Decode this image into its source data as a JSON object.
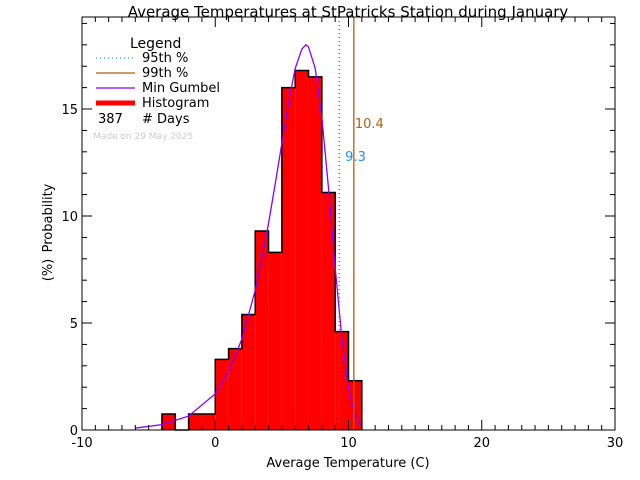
{
  "chart_data": {
    "type": "bar",
    "title": "Average Temperatures at StPatricks Station during January",
    "xlabel": "Average Temperature (C)",
    "ylabel": "Probability\n(%)",
    "xlim": [
      -10,
      30
    ],
    "ylim": [
      0,
      19.3
    ],
    "x_ticks": [
      -10,
      0,
      10,
      20,
      30
    ],
    "y_ticks": [
      0,
      5,
      10,
      15
    ],
    "grid": false,
    "legend_placement": "top-left",
    "histogram": {
      "bin_edges": [
        -4,
        -3,
        -2,
        -1,
        0,
        1,
        2,
        3,
        4,
        5,
        6,
        7,
        8,
        9,
        10,
        11
      ],
      "values": [
        0.75,
        0,
        0.75,
        0.75,
        3.3,
        3.8,
        5.4,
        9.3,
        8.3,
        16.0,
        16.8,
        16.5,
        11.1,
        4.6,
        2.3
      ],
      "color": "#ff0000"
    },
    "gumbel_curve": {
      "x": [
        -6,
        -4,
        -2,
        0,
        1,
        2,
        3,
        3.5,
        4,
        4.5,
        5,
        5.5,
        6,
        6.5,
        6.8,
        7,
        7.5,
        8,
        8.5,
        9,
        9.5,
        10,
        10.5,
        11
      ],
      "y": [
        0.09,
        0.25,
        0.65,
        1.69,
        2.7,
        4.25,
        6.53,
        8.0,
        9.66,
        11.5,
        13.4,
        15.3,
        16.9,
        17.8,
        18.0,
        17.9,
        16.9,
        14.6,
        11.3,
        7.6,
        4.3,
        1.94,
        0.65,
        0.15
      ],
      "color": "#8800ff"
    },
    "percentile_95": {
      "value": 9.3,
      "label": "9.3",
      "line_color": "#b06010",
      "label_color": "#1e90ff"
    },
    "percentile_99": {
      "value": 10.4,
      "label": "10.4",
      "color": "#b06010"
    },
    "legend": {
      "title": "Legend",
      "items": [
        {
          "label": "95th %",
          "style": "dotted",
          "color": "#1e90ff"
        },
        {
          "label": "99th %",
          "style": "solid",
          "color": "#b06010"
        },
        {
          "label": "Min Gumbel",
          "style": "solid",
          "color": "#8800ff"
        },
        {
          "label": "Histogram",
          "style": "thick",
          "color": "#ff0000"
        }
      ],
      "days_count": "387",
      "days_label": "# Days"
    },
    "made_on": "Made on 29 May 2025"
  }
}
